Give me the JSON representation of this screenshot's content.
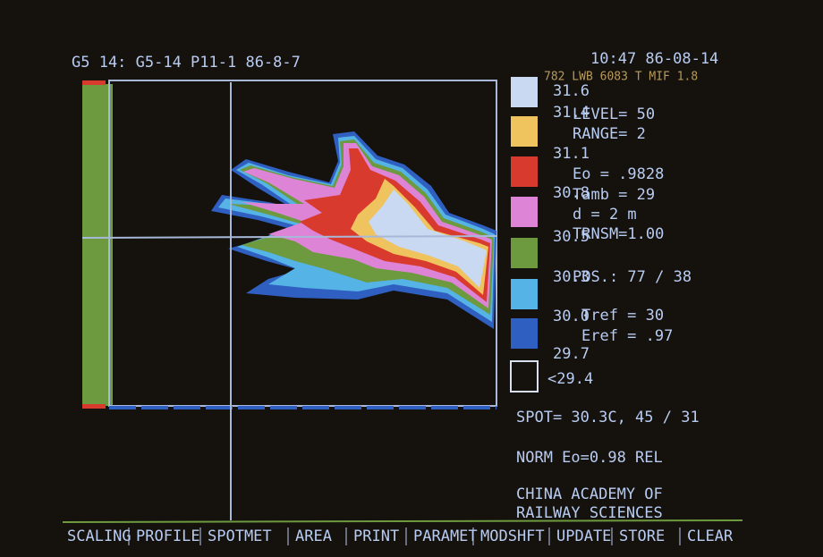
{
  "header": {
    "title": "G5 14: G5-14 P11-1 86-8-7",
    "clock": "10:47  86-08-14",
    "status": "782 LWB 6083 T MIF 1.8"
  },
  "scale": [
    {
      "label": "31.6",
      "color": "#c9d9f2"
    },
    {
      "label": "31.4",
      "color": "#efc35e"
    },
    {
      "label": "31.1",
      "color": "#d83a2e"
    },
    {
      "label": "30.8",
      "color": "#dd84d6"
    },
    {
      "label": "30.5",
      "color": "#6d9a3f"
    },
    {
      "label": "30.3",
      "color": "#55b3e6"
    },
    {
      "label": "30.0",
      "color": "#2f5fc0"
    },
    {
      "label": "29.7",
      "color": "#15110d"
    }
  ],
  "scale_below": "<29.4",
  "params": [
    "LEVEL= 50",
    "RANGE= 2",
    "Eo   = .9828",
    "Tamb = 29",
    "d    = 2 m",
    "TRNSM=1.00",
    "POS.: 77 / 38",
    "Tref = 30",
    "Eref = .97"
  ],
  "spot": "SPOT=    30.3C,   45 / 31",
  "norm": "NORM   Eo=0.98   REL",
  "footer": [
    "CHINA ACADEMY OF",
    "RAILWAY SCIENCES"
  ],
  "menu": [
    "SCALING",
    "PROFILE",
    "SPOTMET",
    "AREA",
    "PRINT",
    "PARAMET",
    "MODSHFT",
    "UPDATE",
    "STORE",
    "CLEAR"
  ]
}
